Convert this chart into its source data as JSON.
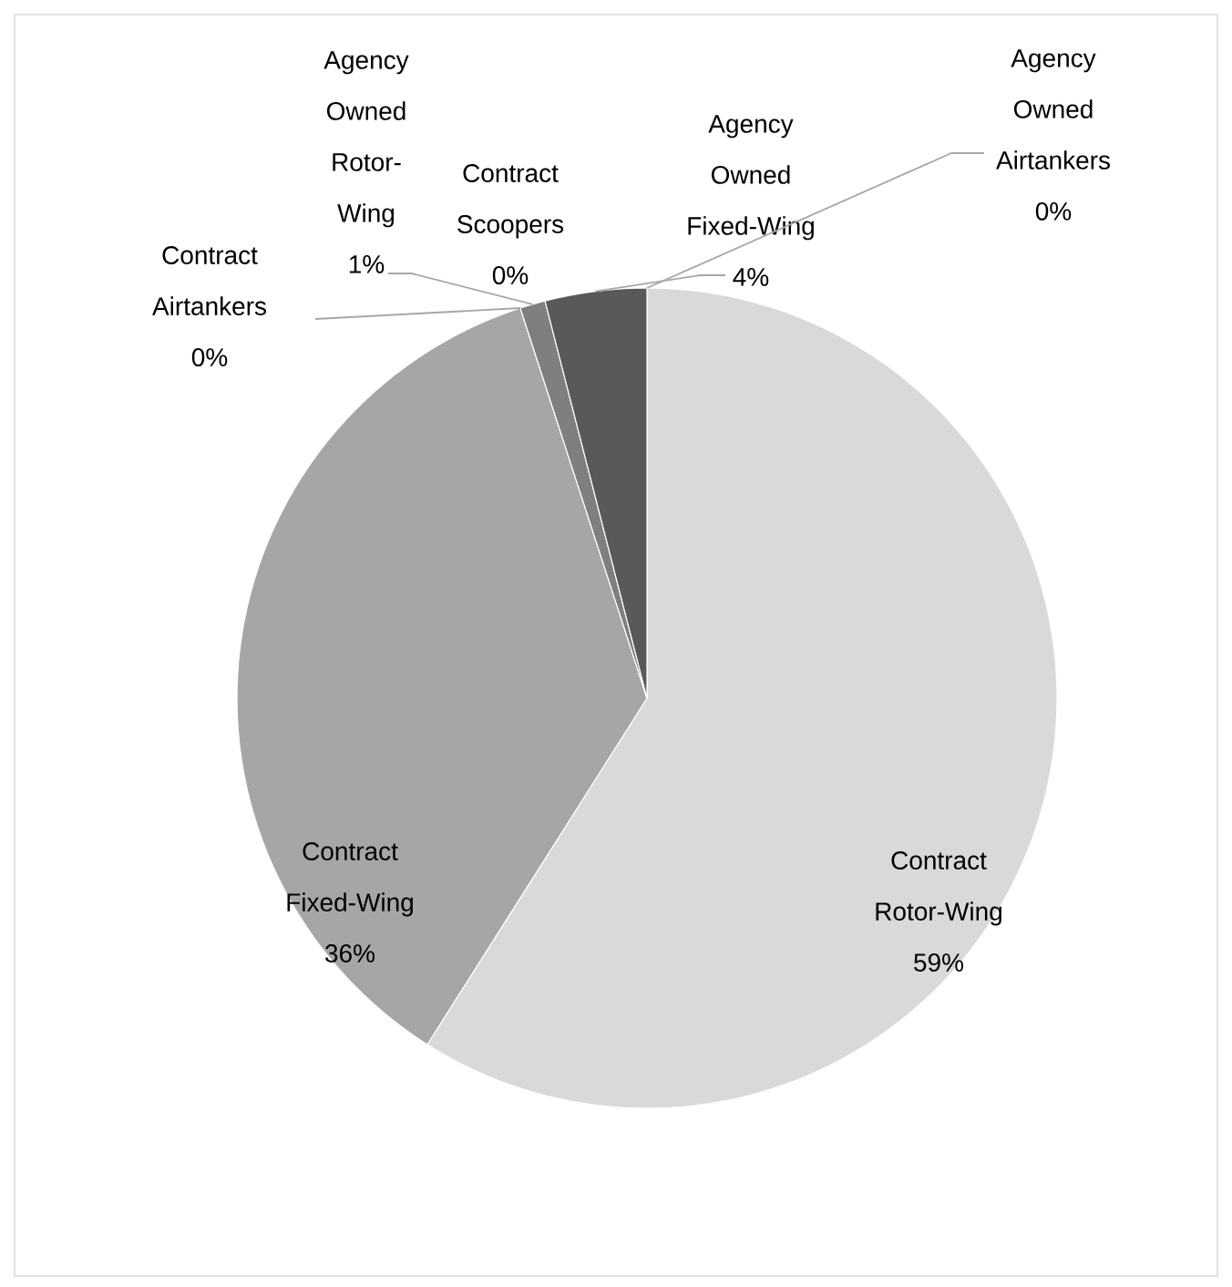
{
  "chart_data": {
    "type": "pie",
    "categories": [
      "Contract Rotor-Wing",
      "Contract Fixed-Wing",
      "Contract Airtankers",
      "Agency Owned Rotor-Wing",
      "Contract Scoopers",
      "Agency Owned Fixed-Wing",
      "Agency Owned Airtankers"
    ],
    "values": [
      59,
      36,
      0,
      1,
      0,
      4,
      0
    ],
    "value_labels": [
      "59%",
      "36%",
      "0%",
      "1%",
      "0%",
      "4%",
      "0%"
    ],
    "colors": [
      "#d9d9d9",
      "#a6a6a6",
      "#8c8c8c",
      "#7f7f7f",
      "#6b6b6b",
      "#595959",
      "#404040"
    ]
  }
}
